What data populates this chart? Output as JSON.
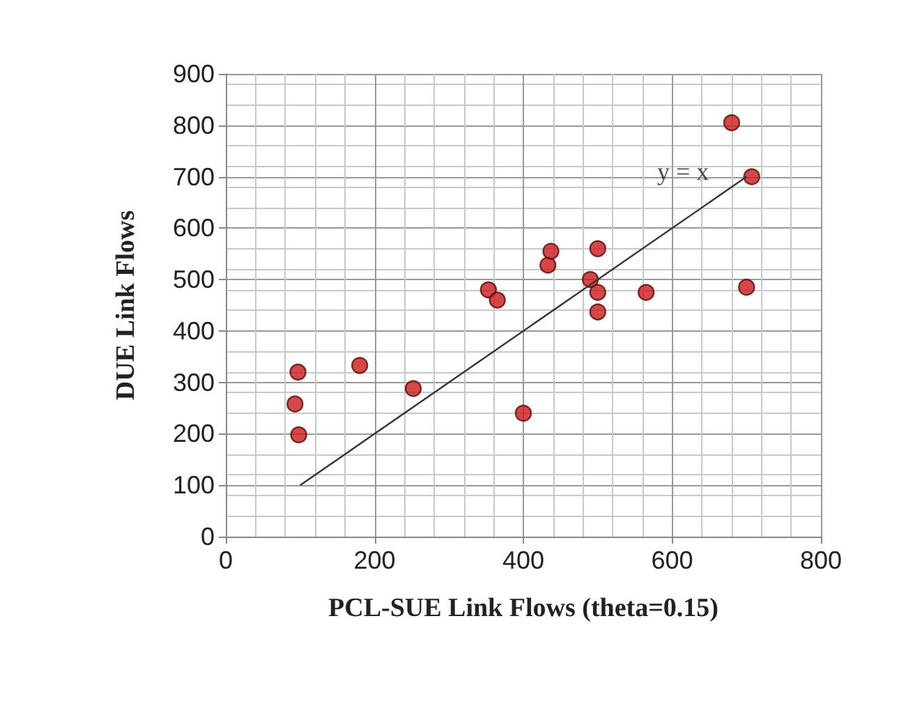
{
  "chart_data": {
    "type": "scatter",
    "xlabel": "PCL-SUE Link Flows (theta=0.15)",
    "ylabel": "DUE Link Flows",
    "xlim": [
      0,
      800
    ],
    "xticks": [
      0,
      200,
      400,
      600,
      800
    ],
    "ylim": [
      0,
      900
    ],
    "yticks": [
      0,
      100,
      200,
      300,
      400,
      500,
      600,
      700,
      800,
      900
    ],
    "grid": true,
    "series": [
      {
        "marker": "circle",
        "color": "#cc1a1a",
        "x": [
          97,
          93,
          98,
          180,
          252,
          353,
          365,
          400,
          433,
          437,
          490,
          500,
          500,
          500,
          565,
          680,
          707,
          700
        ],
        "values": [
          320,
          258,
          198,
          333,
          288,
          480,
          460,
          240,
          528,
          555,
          500,
          560,
          475,
          437,
          475,
          805,
          700,
          485
        ]
      },
      {
        "type": "line",
        "marker": "none",
        "color": "#333333",
        "x": [
          100,
          700
        ],
        "values": [
          100,
          700
        ]
      }
    ],
    "annotations": [
      {
        "text": "y = x",
        "x": 700,
        "y": 700
      }
    ]
  }
}
